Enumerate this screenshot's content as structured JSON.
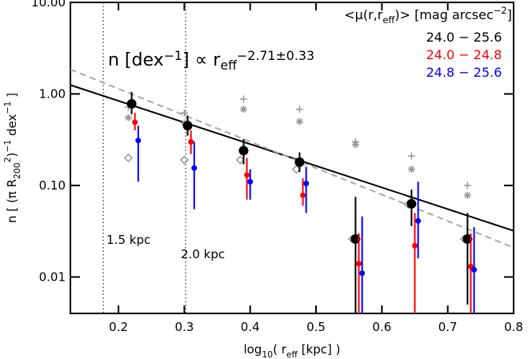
{
  "chart_data": {
    "type": "errorbar-scatter",
    "annotation": {
      "parts": [
        "n [dex",
        "−1",
        "] ∝ r",
        "eff",
        "−2.71±0.33"
      ]
    },
    "xlabel": {
      "parts": [
        "log",
        "10",
        "( r",
        "eff",
        " [kpc] )"
      ]
    },
    "ylabel": {
      "parts": [
        "n [ (π R",
        "200",
        "2",
        ")",
        "−1",
        " dex",
        "−1",
        " ]"
      ]
    },
    "legend_title": {
      "parts": [
        "<μ(r,r",
        "eff",
        ")> [mag arcsec",
        "−2",
        "]"
      ]
    },
    "xlim": [
      0.127,
      0.8
    ],
    "xticks": [
      0.2,
      0.3,
      0.4,
      0.5,
      0.6,
      0.7,
      0.8
    ],
    "ylim": [
      0.004,
      10
    ],
    "log_y": true,
    "yticks": [
      {
        "value": 10,
        "label": "10.00"
      },
      {
        "value": 1,
        "label": "1.00"
      },
      {
        "value": 0.1,
        "label": "0.10"
      },
      {
        "value": 0.01,
        "label": "0.01"
      }
    ],
    "series": [
      {
        "name": "24.0 − 25.6",
        "color": "#000000",
        "x": [
          0.22,
          0.305,
          0.39,
          0.475,
          0.56,
          0.645,
          0.73
        ],
        "values": [
          0.78,
          0.45,
          0.24,
          0.18,
          0.026,
          0.063,
          0.026
        ],
        "lower": [
          0.6,
          0.35,
          0.17,
          0.14,
          0.004,
          0.036,
          0.005
        ],
        "upper": [
          1.05,
          0.58,
          0.32,
          0.23,
          0.075,
          0.09,
          0.05
        ]
      },
      {
        "name": "24.0 − 24.8",
        "color": "#ff0000",
        "x": [
          0.225,
          0.31,
          0.395,
          0.48,
          0.565,
          0.65,
          0.735
        ],
        "values": [
          0.49,
          0.3,
          0.13,
          0.078,
          0.014,
          0.022,
          0.013
        ],
        "lower": [
          0.4,
          0.22,
          0.07,
          0.06,
          0.004,
          0.004,
          0.004
        ],
        "upper": [
          0.62,
          0.4,
          0.2,
          0.12,
          0.03,
          0.05,
          0.03
        ]
      },
      {
        "name": "24.8 − 25.6",
        "color": "#0000ff",
        "x": [
          0.23,
          0.315,
          0.4,
          0.485,
          0.57,
          0.655,
          0.74
        ],
        "values": [
          0.31,
          0.155,
          0.11,
          0.105,
          0.011,
          0.041,
          0.012
        ],
        "lower": [
          0.11,
          0.055,
          0.07,
          0.05,
          0.004,
          0.016,
          0.004
        ],
        "upper": [
          0.45,
          0.3,
          0.15,
          0.16,
          0.046,
          0.11,
          0.035
        ]
      }
    ],
    "reference_points": [
      {
        "marker": "diamond",
        "color": "#999999",
        "x": [
          0.215,
          0.3,
          0.385,
          0.47,
          0.555,
          0.64,
          0.725
        ],
        "values": [
          0.2,
          0.19,
          0.19,
          0.15,
          0.026,
          0.062,
          0.026
        ]
      },
      {
        "marker": "asterisk",
        "color": "#999999",
        "x": [
          0.215,
          0.3,
          0.39,
          0.475,
          0.56,
          0.645,
          0.73
        ],
        "values": [
          0.55,
          0.48,
          0.68,
          0.5,
          0.28,
          0.15,
          0.078
        ]
      },
      {
        "marker": "plus",
        "color": "#999999",
        "x": [
          0.215,
          0.3,
          0.39,
          0.475,
          0.56,
          0.645,
          0.73
        ],
        "values": [
          0.72,
          0.62,
          0.88,
          0.68,
          0.3,
          0.21,
          0.1
        ]
      }
    ],
    "fit_lines": [
      {
        "color": "#000000",
        "dashed": false,
        "x": [
          0.127,
          0.8
        ],
        "values": [
          1.25,
          0.032
        ]
      },
      {
        "color": "#aaaaaa",
        "dashed": true,
        "x": [
          0.127,
          0.8
        ],
        "values": [
          1.85,
          0.021
        ]
      }
    ],
    "vlines": [
      {
        "x": 0.177,
        "label": "1.5 kpc"
      },
      {
        "x": 0.302,
        "label": "2.0 kpc"
      }
    ]
  }
}
